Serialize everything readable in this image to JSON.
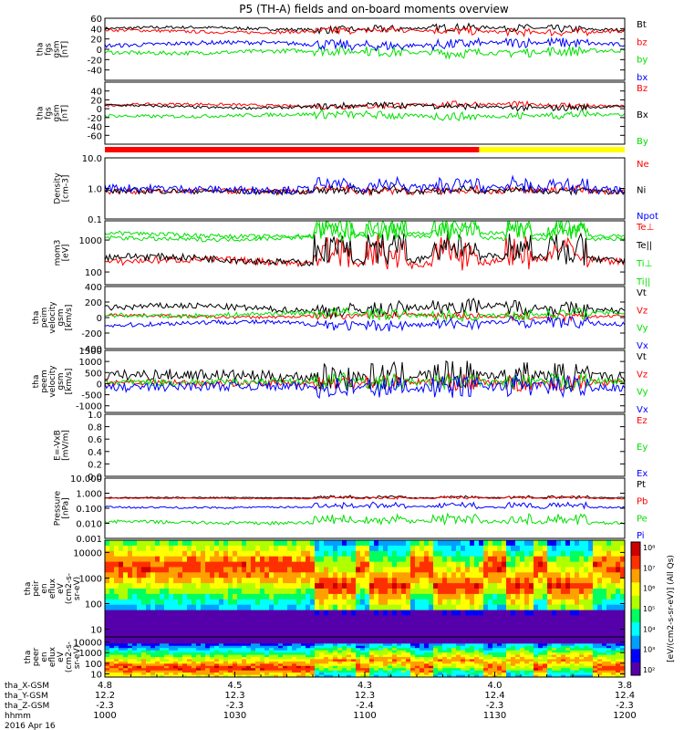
{
  "title": "P5 (TH-A) fields and on-board moments overview",
  "chart_data": [
    {
      "type": "line",
      "ylabel": [
        "tha",
        "fgs",
        "gsm",
        "[nT]"
      ],
      "ylim": [
        -60,
        60
      ],
      "yticks": [
        "60",
        "40",
        "20",
        "0",
        "-20",
        "-40"
      ],
      "series": [
        {
          "name": "Bt",
          "color": "#000000",
          "base": 40,
          "amp": 6,
          "noise": 3
        },
        {
          "name": "bz",
          "color": "#ff0000",
          "base": 35,
          "amp": 6,
          "noise": 3
        },
        {
          "name": "by",
          "color": "#00e000",
          "base": -5,
          "amp": 6,
          "noise": 4
        },
        {
          "name": "bx",
          "color": "#0000ff",
          "base": 10,
          "amp": 8,
          "noise": 4
        }
      ]
    },
    {
      "type": "line",
      "ylabel": [
        "tha",
        "fgs",
        "gsm",
        "[nT]"
      ],
      "ylim": [
        -80,
        60
      ],
      "yticks": [
        "40",
        "20",
        "0",
        "-20",
        "-40",
        "-60"
      ],
      "series": [
        {
          "name": "Bz",
          "color": "#ff0000",
          "base": 8,
          "amp": 6,
          "noise": 3
        },
        {
          "name": "Bx",
          "color": "#000000",
          "base": 5,
          "amp": 8,
          "noise": 3
        },
        {
          "name": "By",
          "color": "#00e000",
          "base": -15,
          "amp": 6,
          "noise": 4
        }
      ]
    },
    {
      "type": "line",
      "ylabel": [
        "Density",
        "[cm-3]"
      ],
      "yscale": "log",
      "ylim": [
        0.1,
        10
      ],
      "yticks": [
        "10.0",
        "1.0",
        "0.1"
      ],
      "series": [
        {
          "name": "Ne",
          "color": "#ff0000",
          "base": 0.8,
          "amp": 1.2,
          "noise": 0.4
        },
        {
          "name": "Ni",
          "color": "#000000",
          "base": 0.8,
          "amp": 1.2,
          "noise": 0.4
        },
        {
          "name": "Npot",
          "color": "#0000ff",
          "base": 1.0,
          "amp": 1.5,
          "noise": 0.6
        }
      ]
    },
    {
      "type": "line",
      "ylabel": [
        "mom3",
        "[eV]"
      ],
      "yscale": "log",
      "ylim": [
        40,
        4000
      ],
      "yticks": [
        "1000",
        "100"
      ],
      "series": [
        {
          "name": "Te⊥",
          "color": "#ff0000",
          "base": 200,
          "amp": 3,
          "noise": 0.5
        },
        {
          "name": "Te||",
          "color": "#000000",
          "base": 250,
          "amp": 3,
          "noise": 0.5
        },
        {
          "name": "Ti⊥",
          "color": "#00e000",
          "base": 1500,
          "amp": 2,
          "noise": 0.3
        },
        {
          "name": "Ti||",
          "color": "#00e000",
          "base": 1200,
          "amp": 2,
          "noise": 0.3
        }
      ]
    },
    {
      "type": "line",
      "ylabel": [
        "tha",
        "peim",
        "velocity",
        "gsm",
        "[km/s]"
      ],
      "ylim": [
        -400,
        400
      ],
      "yticks": [
        "400",
        "200",
        "0",
        "-200",
        "-400"
      ],
      "series": [
        {
          "name": "Vt",
          "color": "#000000",
          "base": 120,
          "amp": 80,
          "noise": 40
        },
        {
          "name": "Vz",
          "color": "#ff0000",
          "base": 20,
          "amp": 40,
          "noise": 20
        },
        {
          "name": "Vy",
          "color": "#00e000",
          "base": 40,
          "amp": 50,
          "noise": 30
        },
        {
          "name": "Vx",
          "color": "#0000ff",
          "base": -80,
          "amp": 60,
          "noise": 30
        }
      ]
    },
    {
      "type": "line",
      "ylabel": [
        "tha",
        "peem",
        "velocity",
        "gsm",
        "[km/s]"
      ],
      "ylim": [
        -1300,
        1500
      ],
      "yticks": [
        "1500",
        "1000",
        "500",
        "0",
        "-500",
        "-1000"
      ],
      "series": [
        {
          "name": "Vt",
          "color": "#000000",
          "base": 350,
          "amp": 150,
          "noise": 250
        },
        {
          "name": "Vz",
          "color": "#ff0000",
          "base": 50,
          "amp": 80,
          "noise": 150
        },
        {
          "name": "Vy",
          "color": "#00e000",
          "base": 80,
          "amp": 80,
          "noise": 150
        },
        {
          "name": "Vx",
          "color": "#0000ff",
          "base": -150,
          "amp": 100,
          "noise": 200
        }
      ]
    },
    {
      "type": "line",
      "ylabel": [
        "E=-VxB",
        "[mV/m]"
      ],
      "ylim": [
        0,
        1
      ],
      "yticks": [
        "1.0",
        "0.8",
        "0.6",
        "0.4",
        "0.2",
        "0.0"
      ],
      "series": [
        {
          "name": "Ez",
          "color": "#ff0000"
        },
        {
          "name": "Ey",
          "color": "#00e000"
        },
        {
          "name": "Ex",
          "color": "#0000ff"
        }
      ]
    },
    {
      "type": "line",
      "ylabel": [
        "Pressure",
        "[nPa]"
      ],
      "yscale": "log",
      "ylim": [
        0.001,
        10
      ],
      "yticks": [
        "10.000",
        "1.000",
        "0.100",
        "0.010",
        "0.001"
      ],
      "series": [
        {
          "name": "Pt",
          "color": "#000000",
          "base": 0.5,
          "amp": 1.2,
          "noise": 0.15
        },
        {
          "name": "Pb",
          "color": "#ff0000",
          "base": 0.45,
          "amp": 1.2,
          "noise": 0.15
        },
        {
          "name": "Pe",
          "color": "#00e000",
          "base": 0.012,
          "amp": 2,
          "noise": 0.5
        },
        {
          "name": "Pi",
          "color": "#0000ff",
          "base": 0.12,
          "amp": 1.5,
          "noise": 0.3
        }
      ]
    },
    {
      "type": "heatmap",
      "ylabel": [
        "tha",
        "peir",
        "en",
        "eflux",
        "eV",
        "(cm2-s-",
        "sr-eV)"
      ],
      "yscale": "log",
      "ylim": [
        5,
        30000
      ],
      "yticks": [
        "10000",
        "1000",
        "100",
        "10"
      ]
    },
    {
      "type": "heatmap",
      "ylabel": [
        "tha",
        "peer",
        "en",
        "eflux",
        "eV",
        "(cm2-s-",
        "sr-eV)"
      ],
      "yscale": "log",
      "ylim": [
        5,
        30000
      ],
      "yticks": [
        "10000",
        "1000",
        "100",
        "10"
      ]
    }
  ],
  "colorbar": {
    "label": "[eV/(cm2-s-sr-eV)]",
    "top_label": "[eV/(cm2-s-sr-eV)] (All Qs)",
    "ticks_top": [
      "10⁷",
      "10⁶",
      "10⁵",
      "10⁴",
      "10³",
      "10²"
    ],
    "ticks_bottom": [
      "10⁸",
      "10⁷",
      "10⁶",
      "10⁵",
      "10⁴",
      "10³",
      "10²"
    ],
    "colors": [
      "#5500aa",
      "#0000ff",
      "#00a0ff",
      "#00ffff",
      "#00ff60",
      "#b0ff00",
      "#ffff00",
      "#ffa000",
      "#ff3000",
      "#cc0000"
    ]
  },
  "x_axis": {
    "rows": [
      {
        "label": "tha_X-GSM",
        "values": [
          "4.8",
          "4.5",
          "4.3",
          "4.0",
          "3.8"
        ]
      },
      {
        "label": "tha_Y-GSM",
        "values": [
          "12.2",
          "12.3",
          "12.3",
          "12.4",
          "12.4"
        ]
      },
      {
        "label": "tha_Z-GSM",
        "values": [
          "-2.3",
          "-2.3",
          "-2.4",
          "-2.3",
          "-2.3"
        ]
      },
      {
        "label": "hhmm",
        "values": [
          "1000",
          "1030",
          "1100",
          "1130",
          "1200"
        ]
      }
    ],
    "date": "2016 Apr 16"
  },
  "mode_bar": {
    "segments": [
      {
        "from": 0,
        "to": 0.72,
        "color": "#ff0000"
      },
      {
        "from": 0.72,
        "to": 1,
        "color": "#ffff00"
      }
    ]
  }
}
